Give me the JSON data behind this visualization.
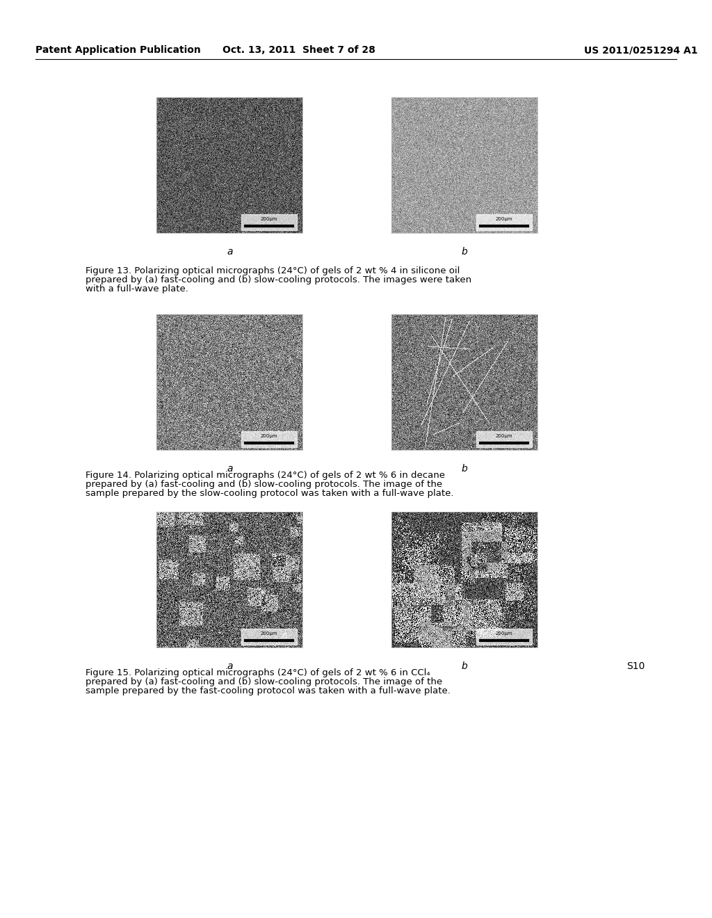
{
  "page_header_left": "Patent Application Publication",
  "page_header_center": "Oct. 13, 2011  Sheet 7 of 28",
  "page_header_right": "US 2011/0251294 A1",
  "fig13_caption": "Figure 13. Polarizing optical micrographs (24°C) of gels of 2 wt % 4 in silicone oil\nprepared by (a) fast-cooling and (b) slow-cooling protocols. The images were taken\nwith a full-wave plate.",
  "fig13_bold_word": "4",
  "fig14_caption": "Figure 14. Polarizing optical micrographs (24°C) of gels of 2 wt % 6 in decane\nprepared by (a) fast-cooling and (b) slow-cooling protocols. The image of the\nsample prepared by the slow-cooling protocol was taken with a full-wave plate.",
  "fig14_bold_word": "6",
  "fig15_caption": "Figure 15. Polarizing optical micrographs (24°C) of gels of 2 wt % 6 in CCl₄\nprepared by (a) fast-cooling and (b) slow-cooling protocols. The image of the\nsample prepared by the fast-cooling protocol was taken with a full-wave plate.",
  "fig15_bold_word": "6",
  "label_a": "a",
  "label_b": "b",
  "page_tag": "S10",
  "background_color": "#ffffff",
  "header_fontsize": 10,
  "caption_fontsize": 9.5,
  "label_fontsize": 10,
  "header_font": "DejaVu Sans",
  "body_font": "DejaVu Sans"
}
